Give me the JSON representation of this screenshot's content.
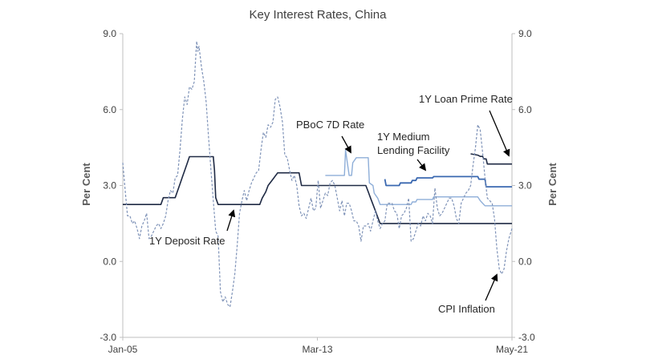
{
  "chart_data": {
    "type": "line",
    "title": "Key Interest Rates, China",
    "ylabel": "Per Cent",
    "ylabel_right": "Per Cent",
    "ylim": [
      -3.0,
      9.0
    ],
    "yticks": [
      "9.0",
      "6.0",
      "3.0",
      "0.0",
      "-3.0"
    ],
    "ytick_values": [
      9,
      6,
      3,
      0,
      -3
    ],
    "xlim": [
      2005.0,
      2021.333
    ],
    "xticks": [
      {
        "label": "Jan-05",
        "value": 2005.0
      },
      {
        "label": "Mar-13",
        "value": 2013.167
      },
      {
        "label": "May-21",
        "value": 2021.333
      }
    ],
    "grid": false,
    "colors": {
      "deposit": "#1f2a44",
      "pboc": "#8eaed8",
      "mlf": "#3a68b0",
      "lpr": "#1f2a44",
      "cpi": "#7f93b8",
      "axis": "#bfbfbf"
    },
    "annotations": [
      {
        "text": "1Y Loan Prime Rate",
        "series": "lpr"
      },
      {
        "text": "PBoC 7D Rate",
        "series": "pboc"
      },
      {
        "text": "1Y Medium",
        "series": "mlf"
      },
      {
        "text": "Lending Facility",
        "series": "mlf"
      },
      {
        "text": "1Y Deposit Rate",
        "series": "deposit"
      },
      {
        "text": "CPI  Inflation",
        "series": "cpi"
      }
    ],
    "series": [
      {
        "key": "deposit",
        "style": "solid",
        "x": [
          2005.0,
          2006.6,
          2006.7,
          2007.2,
          2007.3,
          2007.4,
          2007.5,
          2007.6,
          2007.7,
          2007.8,
          2008.8,
          2008.85,
          2008.9,
          2009.0,
          2010.75,
          2010.85,
          2011.0,
          2011.1,
          2011.3,
          2011.5,
          2012.4,
          2012.5,
          2015.2,
          2015.3,
          2015.4,
          2015.5,
          2015.6,
          2015.7,
          2015.8,
          2021.333
        ],
        "y": [
          2.25,
          2.25,
          2.52,
          2.52,
          2.79,
          3.06,
          3.33,
          3.6,
          3.87,
          4.14,
          4.14,
          3.6,
          2.52,
          2.25,
          2.25,
          2.5,
          2.75,
          3.0,
          3.25,
          3.5,
          3.5,
          3.0,
          3.0,
          2.75,
          2.5,
          2.25,
          2.0,
          1.75,
          1.5,
          1.5
        ]
      },
      {
        "key": "pboc",
        "style": "solid",
        "x": [
          2013.5,
          2014.3,
          2014.35,
          2014.5,
          2014.6,
          2014.65,
          2014.8,
          2015.3,
          2015.35,
          2015.5,
          2015.55,
          2015.7,
          2015.8,
          2017.1,
          2017.15,
          2017.3,
          2017.35,
          2018.0,
          2018.05,
          2019.9,
          2020.0,
          2020.2,
          2021.333
        ],
        "y": [
          3.4,
          3.4,
          4.4,
          3.4,
          3.4,
          3.9,
          4.1,
          4.1,
          3.1,
          3.0,
          2.7,
          2.5,
          2.25,
          2.25,
          2.35,
          2.35,
          2.45,
          2.45,
          2.55,
          2.55,
          2.4,
          2.2,
          2.2
        ]
      },
      {
        "key": "mlf",
        "style": "solid",
        "x": [
          2016.0,
          2016.05,
          2016.6,
          2016.65,
          2017.1,
          2017.15,
          2017.3,
          2017.35,
          2018.0,
          2018.05,
          2019.9,
          2019.95,
          2020.2,
          2020.25,
          2021.333
        ],
        "y": [
          3.25,
          3.0,
          3.0,
          3.1,
          3.1,
          3.2,
          3.2,
          3.3,
          3.3,
          3.35,
          3.35,
          3.25,
          3.25,
          2.95,
          2.95
        ]
      },
      {
        "key": "lpr",
        "style": "solid",
        "x": [
          2019.6,
          2019.9,
          2020.0,
          2020.1,
          2020.15,
          2020.25,
          2020.3,
          2021.333
        ],
        "y": [
          4.25,
          4.2,
          4.15,
          4.15,
          4.05,
          4.05,
          3.85,
          3.85
        ]
      },
      {
        "key": "cpi",
        "style": "dashed",
        "x": [
          2005.0,
          2005.1,
          2005.2,
          2005.3,
          2005.4,
          2005.5,
          2005.6,
          2005.7,
          2005.8,
          2005.9,
          2006.0,
          2006.1,
          2006.2,
          2006.3,
          2006.4,
          2006.5,
          2006.6,
          2006.7,
          2006.8,
          2006.9,
          2007.0,
          2007.1,
          2007.2,
          2007.3,
          2007.4,
          2007.5,
          2007.6,
          2007.7,
          2007.8,
          2007.9,
          2008.0,
          2008.1,
          2008.15,
          2008.2,
          2008.3,
          2008.4,
          2008.5,
          2008.6,
          2008.7,
          2008.8,
          2008.9,
          2009.0,
          2009.1,
          2009.2,
          2009.3,
          2009.4,
          2009.5,
          2009.6,
          2009.7,
          2009.8,
          2009.9,
          2010.0,
          2010.1,
          2010.2,
          2010.3,
          2010.4,
          2010.5,
          2010.6,
          2010.7,
          2010.8,
          2010.9,
          2011.0,
          2011.1,
          2011.2,
          2011.3,
          2011.4,
          2011.5,
          2011.6,
          2011.7,
          2011.8,
          2011.9,
          2012.0,
          2012.1,
          2012.2,
          2012.3,
          2012.4,
          2012.5,
          2012.6,
          2012.7,
          2012.8,
          2012.9,
          2013.0,
          2013.1,
          2013.2,
          2013.3,
          2013.4,
          2013.5,
          2013.6,
          2013.7,
          2013.8,
          2013.9,
          2014.0,
          2014.1,
          2014.2,
          2014.3,
          2014.4,
          2014.5,
          2014.6,
          2014.7,
          2014.8,
          2014.9,
          2015.0,
          2015.1,
          2015.2,
          2015.3,
          2015.4,
          2015.5,
          2015.6,
          2015.7,
          2015.8,
          2015.9,
          2016.0,
          2016.1,
          2016.2,
          2016.3,
          2016.4,
          2016.5,
          2016.6,
          2016.7,
          2016.8,
          2016.9,
          2017.0,
          2017.1,
          2017.2,
          2017.3,
          2017.4,
          2017.5,
          2017.6,
          2017.7,
          2017.8,
          2017.9,
          2018.0,
          2018.1,
          2018.2,
          2018.3,
          2018.4,
          2018.5,
          2018.6,
          2018.7,
          2018.8,
          2018.9,
          2019.0,
          2019.1,
          2019.2,
          2019.3,
          2019.4,
          2019.5,
          2019.6,
          2019.7,
          2019.8,
          2019.9,
          2020.0,
          2020.1,
          2020.2,
          2020.3,
          2020.4,
          2020.5,
          2020.6,
          2020.7,
          2020.8,
          2020.9,
          2021.0,
          2021.1,
          2021.2,
          2021.333
        ],
        "y": [
          3.9,
          2.8,
          1.8,
          1.8,
          1.5,
          1.6,
          1.3,
          0.9,
          1.4,
          1.6,
          1.9,
          0.9,
          1.0,
          1.2,
          1.4,
          1.5,
          1.3,
          1.5,
          1.8,
          2.4,
          2.8,
          2.7,
          3.3,
          3.4,
          4.4,
          5.6,
          6.5,
          6.2,
          6.9,
          6.8,
          7.1,
          8.7,
          8.3,
          8.5,
          7.7,
          7.1,
          6.3,
          4.9,
          3.6,
          2.4,
          1.2,
          1.0,
          -1.2,
          -1.6,
          -1.4,
          -1.7,
          -1.8,
          -1.2,
          -0.5,
          0.6,
          1.9,
          2.4,
          2.8,
          2.4,
          2.8,
          3.1,
          3.3,
          3.5,
          3.6,
          4.4,
          5.1,
          4.9,
          5.4,
          5.3,
          5.5,
          6.4,
          6.5,
          6.1,
          5.5,
          4.2,
          4.1,
          3.6,
          3.2,
          3.4,
          3.0,
          2.2,
          1.8,
          1.9,
          1.7,
          2.1,
          2.5,
          2.0,
          2.1,
          3.2,
          2.1,
          2.4,
          2.7,
          2.6,
          3.1,
          3.2,
          3.0,
          2.5,
          2.0,
          2.4,
          1.8,
          2.3,
          2.3,
          2.0,
          1.6,
          1.6,
          1.4,
          0.8,
          1.4,
          1.4,
          1.5,
          1.2,
          1.6,
          2.0,
          1.6,
          1.3,
          1.5,
          1.6,
          2.3,
          2.3,
          2.3,
          2.0,
          1.9,
          1.3,
          1.8,
          1.9,
          2.1,
          2.5,
          0.8,
          0.9,
          1.2,
          1.5,
          1.4,
          1.8,
          1.6,
          1.9,
          1.8,
          1.5,
          2.9,
          2.1,
          1.8,
          1.9,
          2.1,
          2.3,
          2.5,
          2.5,
          2.2,
          1.7,
          1.5,
          2.3,
          2.5,
          2.7,
          2.8,
          3.0,
          3.8,
          4.5,
          5.4,
          5.2,
          4.3,
          3.3,
          2.5,
          2.4,
          2.3,
          1.7,
          0.5,
          -0.3,
          -0.5,
          -0.3,
          0.4,
          0.9,
          1.3
        ]
      }
    ]
  }
}
